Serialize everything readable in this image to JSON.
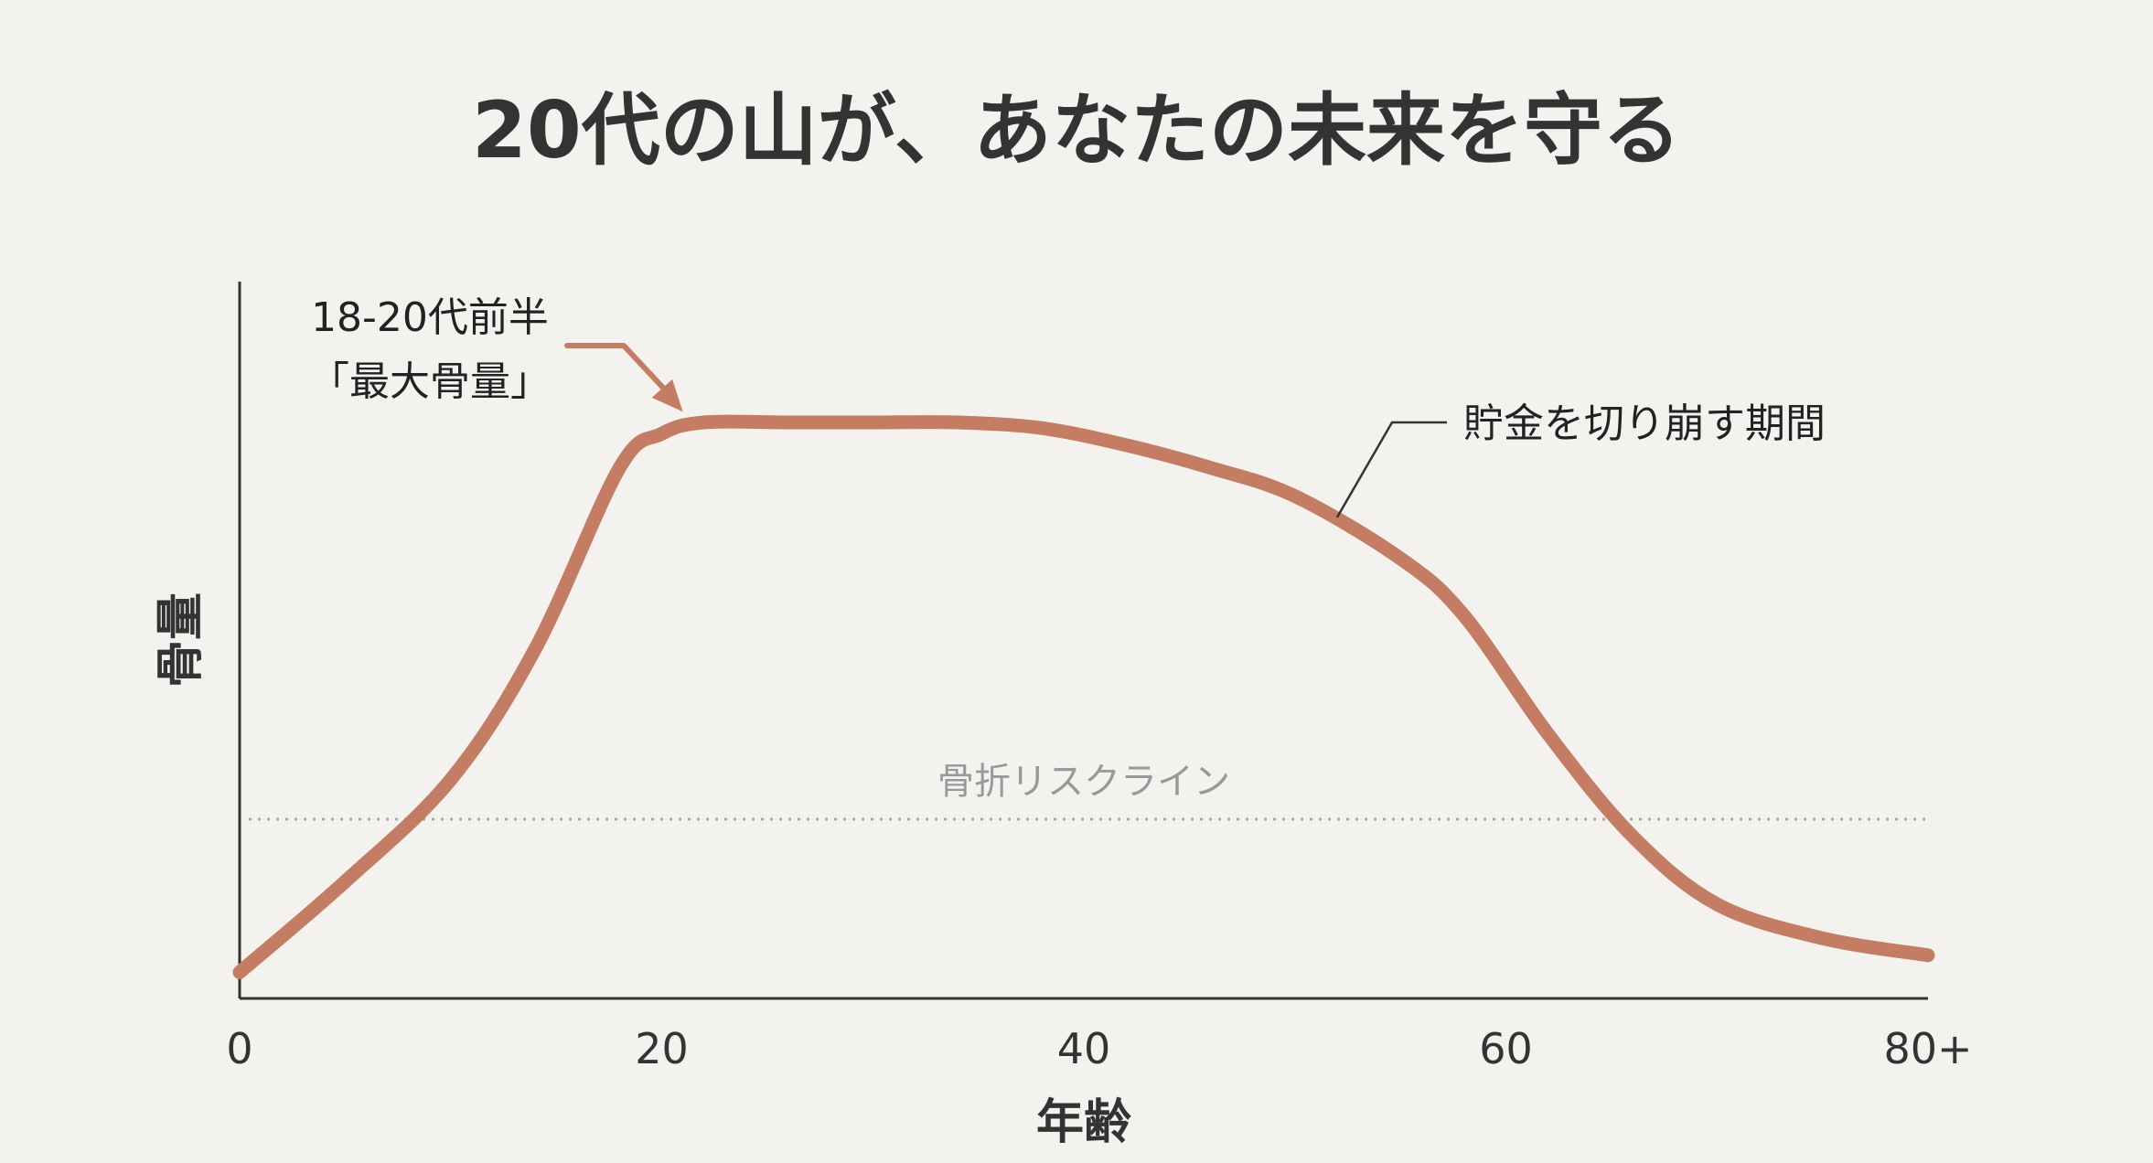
{
  "chart_data": {
    "type": "line",
    "title": "20代の山が、あなたの未来を守る",
    "xlabel": "年齢",
    "ylabel": "骨量",
    "x_ticks": [
      "0",
      "20",
      "40",
      "60",
      "80+"
    ],
    "xlim": [
      0,
      80
    ],
    "ylim": [
      0,
      100
    ],
    "grid": false,
    "colors": {
      "curve": "#c47c62",
      "axis": "#333333",
      "risk_line": "#aaaaaa",
      "pointer": "#333333"
    },
    "series": [
      {
        "x": [
          0,
          5,
          10,
          14,
          18,
          20,
          22,
          26,
          30,
          34,
          38,
          42,
          46,
          50,
          55,
          58,
          62,
          66,
          70,
          75,
          80
        ],
        "values": [
          3,
          19,
          37,
          60,
          92,
          98,
          100,
          100,
          100,
          100,
          99,
          96,
          92,
          87,
          76,
          66,
          45,
          27,
          15,
          9,
          6
        ]
      }
    ],
    "reference_line": {
      "y": 30,
      "label": "骨折リスクライン"
    },
    "annotations": [
      {
        "lines": [
          "18-20代前半",
          "「最大骨量」"
        ],
        "target_x": 21
      },
      {
        "text": "貯金を切り崩す期間",
        "target_x": 52
      }
    ]
  }
}
